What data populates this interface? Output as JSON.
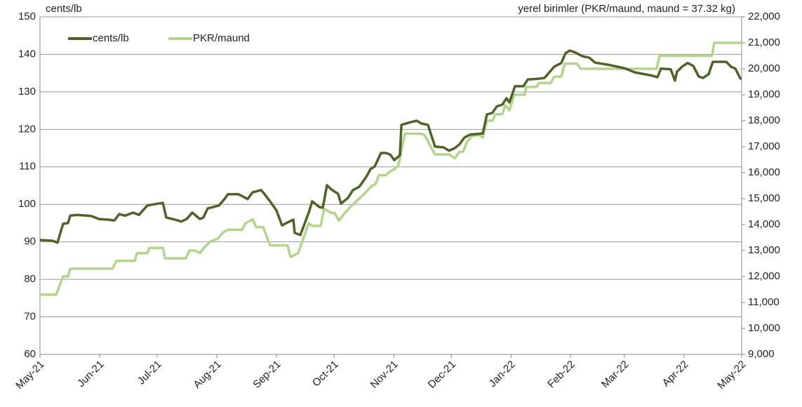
{
  "chart_data": {
    "type": "line",
    "ylabel": "cents/lb",
    "y2label": "yerel birimler (PKR/maund, maund = 37.32 kg)",
    "xlim": [
      0,
      365
    ],
    "xticks": [
      {
        "value": 0,
        "label": "May-21"
      },
      {
        "value": 31,
        "label": "Jun-21"
      },
      {
        "value": 61,
        "label": "Jul-21"
      },
      {
        "value": 92,
        "label": "Aug-21"
      },
      {
        "value": 123,
        "label": "Sep-21"
      },
      {
        "value": 153,
        "label": "Oct-21"
      },
      {
        "value": 184,
        "label": "Nov-21"
      },
      {
        "value": 214,
        "label": "Dec-21"
      },
      {
        "value": 245,
        "label": "Jan-22"
      },
      {
        "value": 276,
        "label": "Feb-22"
      },
      {
        "value": 304,
        "label": "Mar-22"
      },
      {
        "value": 335,
        "label": "Apr-22"
      },
      {
        "value": 365,
        "label": "May-22"
      }
    ],
    "ylim": [
      60,
      150
    ],
    "yticks": [
      60,
      70,
      80,
      90,
      100,
      110,
      120,
      130,
      140,
      150
    ],
    "y2lim": [
      9000,
      22000
    ],
    "y2ticks": [
      {
        "value": 9000,
        "label": "9,000"
      },
      {
        "value": 10000,
        "label": "10,000"
      },
      {
        "value": 11000,
        "label": "11,000"
      },
      {
        "value": 12000,
        "label": "12,000"
      },
      {
        "value": 13000,
        "label": "13,000"
      },
      {
        "value": 14000,
        "label": "14,000"
      },
      {
        "value": 15000,
        "label": "15,000"
      },
      {
        "value": 16000,
        "label": "16,000"
      },
      {
        "value": 17000,
        "label": "17,000"
      },
      {
        "value": 18000,
        "label": "18,000"
      },
      {
        "value": 19000,
        "label": "19,000"
      },
      {
        "value": 20000,
        "label": "20,000"
      },
      {
        "value": 21000,
        "label": "21,000"
      },
      {
        "value": 22000,
        "label": "22,000"
      }
    ],
    "grid": true,
    "legend": "upper left",
    "series": [
      {
        "name": "cents/lb",
        "color": "#4f6228",
        "x": [
          0,
          6.6,
          9.1,
          12,
          14.6,
          15.7,
          19.3,
          26.6,
          30.7,
          35.8,
          38.7,
          41.2,
          44.2,
          48.5,
          51.5,
          55.8,
          61.3,
          63.9,
          65.7,
          70.4,
          73.4,
          76.3,
          79.2,
          83.2,
          85.0,
          87.2,
          93.1,
          95.3,
          97.8,
          103.3,
          106.2,
          108.0,
          110.6,
          115.0,
          116.4,
          119.4,
          123.0,
          125.9,
          128.8,
          131.8,
          132.5,
          135.4,
          139.8,
          141.6,
          145.3,
          147.1,
          149.3,
          151.5,
          155.1,
          156.6,
          160.2,
          162.8,
          166.1,
          169.7,
          171.9,
          174.1,
          177.4,
          179.9,
          182.1,
          184.3,
          187.2,
          188.0,
          192.7,
          196.0,
          198.2,
          201.8,
          203.3,
          205.5,
          209.9,
          212.8,
          215.7,
          218.2,
          220.8,
          223.7,
          230.3,
          232.5,
          235.4,
          237.6,
          240.5,
          242.7,
          244.2,
          247.1,
          251.5,
          253.7,
          259.2,
          262.4,
          267.5,
          271.2,
          273.4,
          275.6,
          278.5,
          282.1,
          285.8,
          288.7,
          296.7,
          304.0,
          309.5,
          318.6,
          321.2,
          323.0,
          328.1,
          330.3,
          331.4,
          334.0,
          336.9,
          339.8,
          342.7,
          344.9,
          347.8,
          350.0,
          357.0,
          359.5,
          361.7,
          364.6
        ],
        "values": [
          90.5,
          90.3,
          89.8,
          94.8,
          95.0,
          97.0,
          97.2,
          96.9,
          96.1,
          95.9,
          95.7,
          97.4,
          97.0,
          97.8,
          97.2,
          99.7,
          100.2,
          100.4,
          96.5,
          95.9,
          95.4,
          96.1,
          97.8,
          96.1,
          96.5,
          98.9,
          99.7,
          101.0,
          102.7,
          102.7,
          101.9,
          101.4,
          103.2,
          103.8,
          103.0,
          101.0,
          98.4,
          94.4,
          95.2,
          95.9,
          92.4,
          91.8,
          97.8,
          100.8,
          99.3,
          99.1,
          105.1,
          104.0,
          102.8,
          100.2,
          101.7,
          103.8,
          104.7,
          107.3,
          109.4,
          110.1,
          113.7,
          113.7,
          113.3,
          111.8,
          113.1,
          121.2,
          121.9,
          122.3,
          121.6,
          121.2,
          118.8,
          115.4,
          115.2,
          114.3,
          115.0,
          116.0,
          117.8,
          118.6,
          118.9,
          124.0,
          124.4,
          126.1,
          126.6,
          128.3,
          127.2,
          131.5,
          131.5,
          133.3,
          133.5,
          133.7,
          136.7,
          137.7,
          140.3,
          141.0,
          140.5,
          139.5,
          139.1,
          137.8,
          137.1,
          136.3,
          135.2,
          134.3,
          133.9,
          136.2,
          136.0,
          133.0,
          135.4,
          136.7,
          137.7,
          136.9,
          134.1,
          133.7,
          134.7,
          138.0,
          138.0,
          136.7,
          136.2,
          133.3
        ]
      },
      {
        "name": "PKR/maund",
        "color": "#b3d48c",
        "axis": "y2",
        "x": [
          0,
          8.4,
          12,
          14.6,
          15.7,
          37.6,
          39.8,
          49.3,
          50.4,
          55.8,
          56.9,
          63.9,
          65.0,
          75.9,
          77.7,
          80.7,
          83.2,
          85.8,
          88.7,
          92.3,
          95.3,
          97.8,
          105.1,
          106.9,
          110.6,
          112.4,
          116.1,
          119.7,
          128.8,
          130.3,
          134.3,
          139.8,
          141.6,
          146.0,
          147.8,
          151.5,
          153.3,
          155.5,
          158.0,
          161.7,
          165.3,
          169.0,
          172.6,
          174.5,
          176.3,
          179.9,
          182.1,
          184.7,
          186.5,
          189.8,
          198.2,
          200.0,
          205.5,
          212.8,
          215.7,
          218.2,
          220.1,
          221.9,
          224.5,
          228.5,
          230.3,
          232.5,
          235.4,
          236.9,
          240.5,
          242.0,
          244.2,
          246.7,
          252.2,
          252.9,
          258.4,
          259.5,
          265.7,
          267.5,
          271.2,
          273.0,
          279.2,
          281.4,
          320.8,
          322.3,
          349.6,
          350.7,
          365
        ],
        "values": [
          11300,
          11300,
          12000,
          12000,
          12300,
          12300,
          12600,
          12600,
          12900,
          12900,
          13100,
          13100,
          12700,
          12700,
          13000,
          13000,
          12900,
          13150,
          13350,
          13450,
          13700,
          13800,
          13800,
          14050,
          14200,
          13900,
          13900,
          13200,
          13200,
          12750,
          12900,
          14050,
          13950,
          13950,
          14600,
          14450,
          14450,
          14150,
          14400,
          14700,
          14950,
          15200,
          15500,
          15550,
          15900,
          15900,
          16050,
          16150,
          16300,
          17500,
          17500,
          17450,
          16700,
          16700,
          16550,
          16800,
          16800,
          17150,
          17400,
          17450,
          17350,
          18000,
          18000,
          18250,
          18250,
          18600,
          18400,
          19000,
          19000,
          19300,
          19300,
          19450,
          19450,
          19700,
          19700,
          20200,
          20200,
          20000,
          20000,
          20500,
          20500,
          21000,
          21000
        ]
      }
    ]
  }
}
